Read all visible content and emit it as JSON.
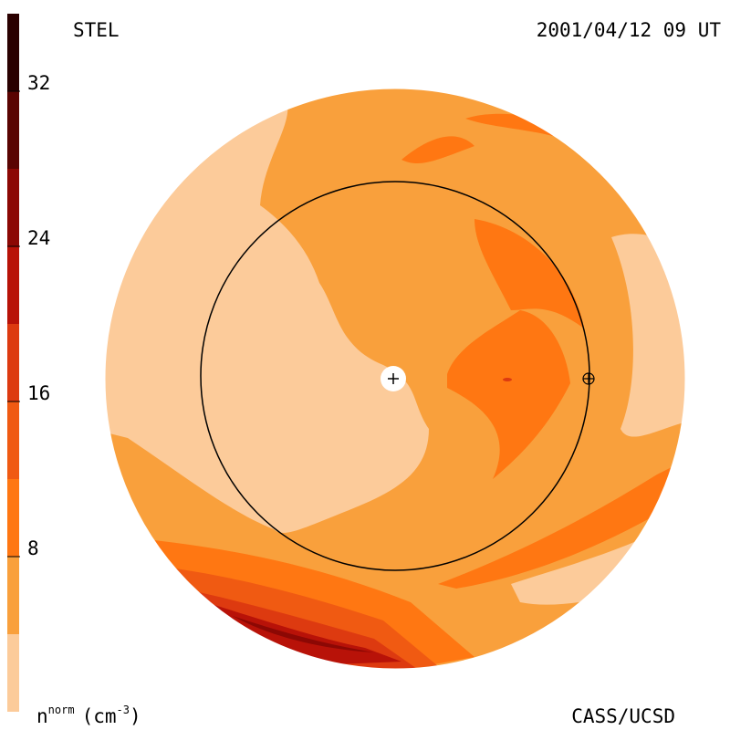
{
  "chart_data": {
    "type": "colorbar-map",
    "title": "STEL",
    "subtitle": "2001/04/12 09 UT",
    "credit": "CASS/UCSD",
    "colorbar_label": {
      "base": "n",
      "sup": "norm",
      "unit": "(cm",
      "unit_sup": "-3",
      "close": ")"
    },
    "levels": [
      0,
      4,
      8,
      12,
      16,
      20,
      24,
      28,
      32,
      36
    ],
    "colors": [
      "#fccb9a",
      "#f9a03c",
      "#ff7712",
      "#f05a12",
      "#dd3a10",
      "#b81208",
      "#8c0804",
      "#5a0402",
      "#2a0000"
    ],
    "ylim": [
      0,
      36
    ],
    "yticks": [
      8,
      16,
      24,
      32
    ]
  }
}
